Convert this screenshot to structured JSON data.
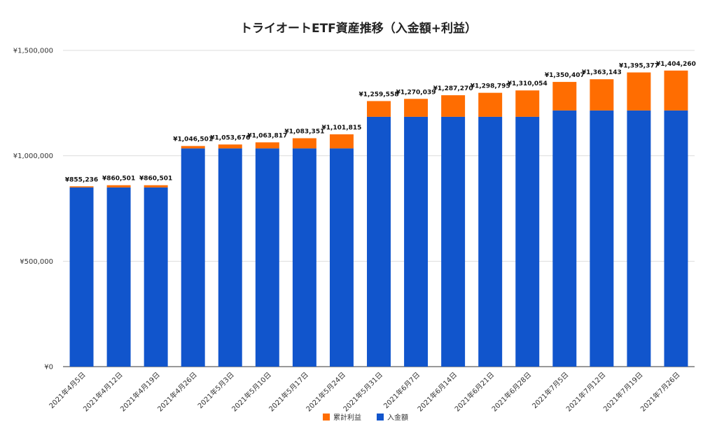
{
  "chart_data": {
    "type": "bar",
    "stacked": true,
    "title": "トライオートETF資産推移（入金額+利益）",
    "xlabel": "",
    "ylabel": "",
    "ylim": [
      0,
      1500000
    ],
    "yticks": [
      0,
      500000,
      1000000,
      1500000
    ],
    "ytick_labels": [
      "¥0",
      "¥500,000",
      "¥1,000,000",
      "¥1,500,000"
    ],
    "grid": true,
    "legend_position": "bottom",
    "categories": [
      "2021年4月5日",
      "2021年4月12日",
      "2021年4月19日",
      "2021年4月26日",
      "2021年5月3日",
      "2021年5月10日",
      "2021年5月17日",
      "2021年5月24日",
      "2021年5月31日",
      "2021年6月7日",
      "2021年6月14日",
      "2021年6月21日",
      "2021年6月28日",
      "2021年7月5日",
      "2021年7月12日",
      "2021年7月19日",
      "2021年7月26日"
    ],
    "series": [
      {
        "name": "入金額",
        "color": "#1155cc",
        "values": [
          850000,
          850000,
          850000,
          1035000,
          1035000,
          1035000,
          1035000,
          1035000,
          1185000,
          1185000,
          1185000,
          1185000,
          1185000,
          1215000,
          1215000,
          1215000,
          1215000
        ]
      },
      {
        "name": "累計利益",
        "color": "#ff6d01",
        "values": [
          5236,
          10501,
          10501,
          11501,
          18676,
          28817,
          48351,
          66815,
          74558,
          85039,
          102270,
          113795,
          125054,
          135407,
          148143,
          180377,
          189260
        ]
      }
    ],
    "total_labels": [
      "¥855,236",
      "¥860,501",
      "¥860,501",
      "¥1,046,501",
      "¥1,053,676",
      "¥1,063,817",
      "¥1,083,351",
      "¥1,101,815",
      "¥1,259,558",
      "¥1,270,039",
      "¥1,287,270",
      "¥1,298,795",
      "¥1,310,054",
      "¥1,350,407",
      "¥1,363,143",
      "¥1,395,377",
      "¥1,404,260"
    ],
    "legend": [
      {
        "name": "累計利益",
        "color": "#ff6d01"
      },
      {
        "name": "入金額",
        "color": "#1155cc"
      }
    ]
  }
}
